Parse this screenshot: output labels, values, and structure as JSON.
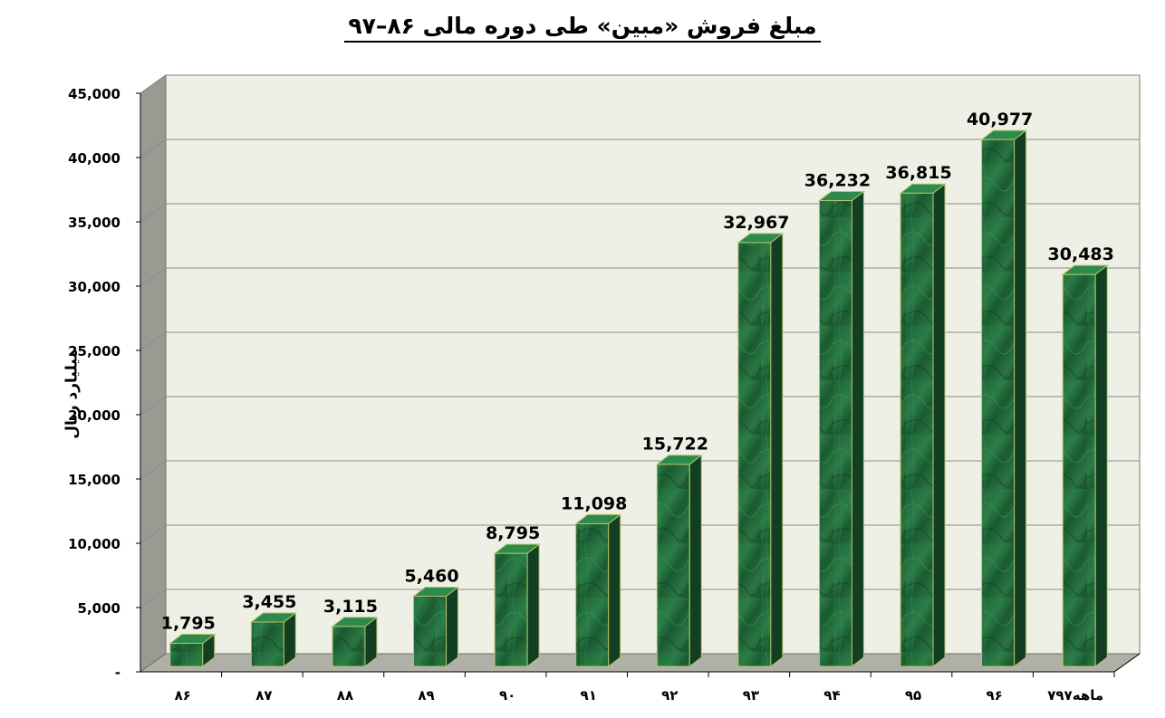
{
  "chart_data": {
    "type": "bar",
    "title": "مبلغ فروش «مبین» طی دوره مالی ۸۶–۹۷",
    "xlabel": "",
    "ylabel": "میلیارد ریال",
    "categories": [
      "۸۶",
      "۸۷",
      "۸۸",
      "۸۹",
      "۹۰",
      "۹۱",
      "۹۲",
      "۹۳",
      "۹۴",
      "۹۵",
      "۹۶",
      "۷ماهه۹۷"
    ],
    "values": [
      1795,
      3455,
      3115,
      5460,
      8795,
      11098,
      15722,
      32967,
      36232,
      36815,
      40977,
      30483
    ],
    "value_labels": [
      "1,795",
      "3,455",
      "3,115",
      "5,460",
      "8,795",
      "11,098",
      "15,722",
      "32,967",
      "36,232",
      "36,815",
      "40,977",
      "30,483"
    ],
    "ylim": [
      0,
      45000
    ],
    "yticks": [
      0,
      5000,
      10000,
      15000,
      20000,
      25000,
      30000,
      35000,
      40000,
      45000
    ],
    "ytick_labels": [
      "-",
      "5,000",
      "10,000",
      "15,000",
      "20,000",
      "25,000",
      "30,000",
      "35,000",
      "40,000",
      "45,000"
    ],
    "grid": true,
    "style": "3d-bar",
    "colors": {
      "bar_front": "#1f6a3a",
      "bar_side": "#123f22",
      "bar_top": "#2d8a4c",
      "bar_edge": "#b5c46a",
      "back_wall": "#eef0e6",
      "side_wall": "#9a9a92",
      "floor": "#b0b0a8",
      "grid": "#8a8a8a"
    }
  }
}
